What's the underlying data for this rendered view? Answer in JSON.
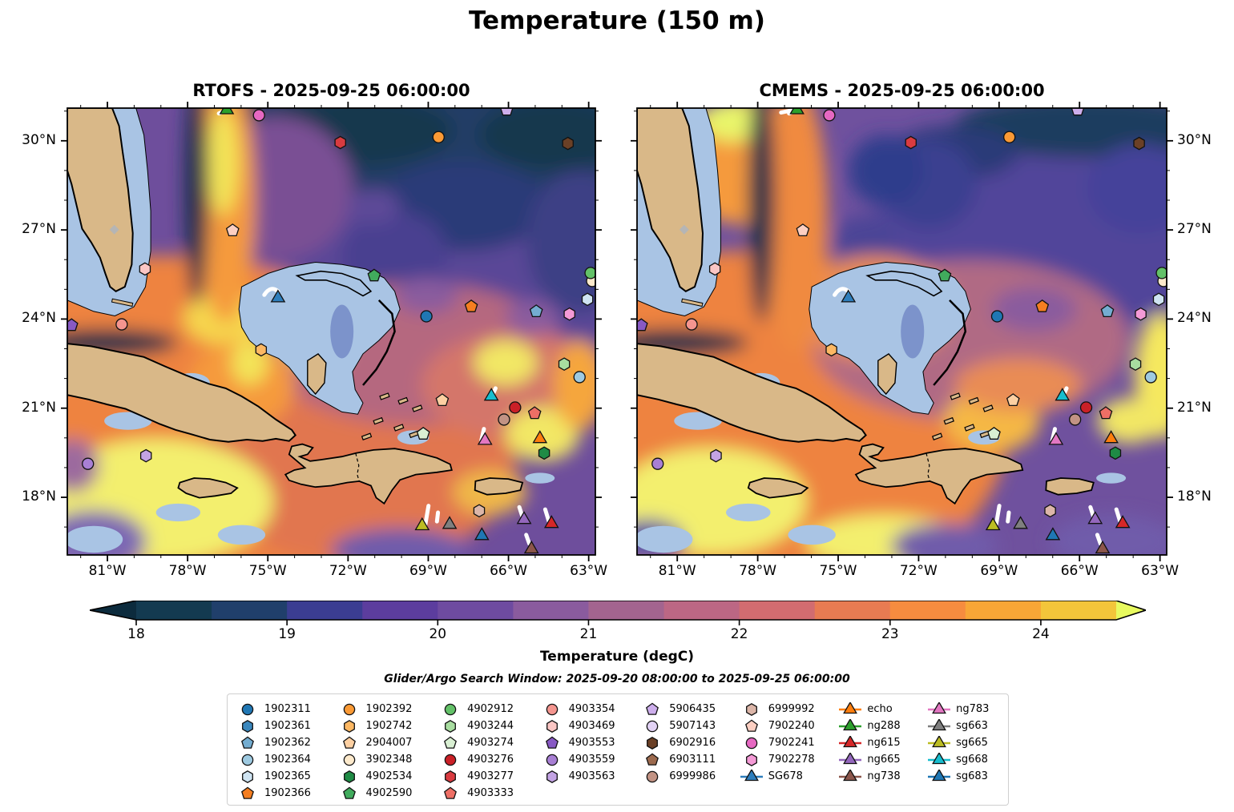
{
  "figure": {
    "title": "Temperature (150 m)",
    "colorbar_label": "Temperature (degC)",
    "subtitle": "Glider/Argo Search Window: 2025-09-20 08:00:00 to 2025-09-25 06:00:00"
  },
  "chart_data": {
    "type": "heatmap",
    "subtype": "filled-contour geographic map, 2 panels",
    "title": "Temperature (150 m)",
    "panels": [
      {
        "name": "RTOFS",
        "title": "RTOFS - 2025-09-25 06:00:00"
      },
      {
        "name": "CMEMS",
        "title": "CMEMS - 2025-09-25 06:00:00"
      }
    ],
    "lon_range_degW": [
      82.5,
      62.75
    ],
    "lat_range_degN": [
      16.06,
      31.1
    ],
    "lon_ticks": [
      {
        "v": 81,
        "label": "81°W"
      },
      {
        "v": 78,
        "label": "78°W"
      },
      {
        "v": 75,
        "label": "75°W"
      },
      {
        "v": 72,
        "label": "72°W"
      },
      {
        "v": 69,
        "label": "69°W"
      },
      {
        "v": 66,
        "label": "66°W"
      },
      {
        "v": 63,
        "label": "63°W"
      }
    ],
    "lat_ticks": [
      {
        "v": 30,
        "label": "30°N"
      },
      {
        "v": 27,
        "label": "27°N"
      },
      {
        "v": 24,
        "label": "24°N"
      },
      {
        "v": 21,
        "label": "21°N"
      },
      {
        "v": 18,
        "label": "18°N"
      }
    ],
    "colorbar": {
      "label": "Temperature (degC)",
      "tick_values": [
        18,
        19,
        20,
        21,
        22,
        23,
        24
      ],
      "range_degC": [
        18,
        24.5
      ],
      "level_step_degC": 0.5,
      "extend": "both",
      "under_color": "#0c2b3d",
      "over_color": "#e8fa5f",
      "level_colors": [
        "#133a50",
        "#203f6b",
        "#3b3d92",
        "#5c3d9e",
        "#6e4ba0",
        "#8a5b9e",
        "#a3648f",
        "#bc6784",
        "#d26c70",
        "#e87b52",
        "#f68c3f",
        "#f8a636",
        "#f3c53a"
      ]
    },
    "platforms": [
      {
        "id": "1902311",
        "kind": "argo",
        "marker": "circle",
        "color": "#2077b4",
        "col": 0,
        "fx": 0.68,
        "fy": 0.466
      },
      {
        "id": "1902361",
        "kind": "argo",
        "marker": "hexagon",
        "color": "#3a87bd",
        "col": 0,
        "fx": null,
        "fy": null
      },
      {
        "id": "1902362",
        "kind": "argo",
        "marker": "pentagon",
        "color": "#74add1",
        "col": 0,
        "fx": 0.888,
        "fy": 0.455
      },
      {
        "id": "1902364",
        "kind": "argo",
        "marker": "circle",
        "color": "#9ecae1",
        "col": 0,
        "fx": 0.97,
        "fy": 0.602
      },
      {
        "id": "1902365",
        "kind": "argo",
        "marker": "hexagon",
        "color": "#cfe4f2",
        "col": 0,
        "fx": 0.985,
        "fy": 0.428
      },
      {
        "id": "1902366",
        "kind": "argo",
        "marker": "pentagon",
        "color": "#f57e20",
        "col": 0,
        "fx": 0.765,
        "fy": 0.444
      },
      {
        "id": "1902392",
        "kind": "argo",
        "marker": "circle",
        "color": "#fb9a35",
        "col": 1,
        "fx": 0.703,
        "fy": 0.065
      },
      {
        "id": "1902742",
        "kind": "argo",
        "marker": "hexagon",
        "color": "#fdb863",
        "col": 1,
        "fx": 0.367,
        "fy": 0.541
      },
      {
        "id": "2904007",
        "kind": "argo",
        "marker": "pentagon",
        "color": "#fdd0a2",
        "col": 1,
        "fx": 0.71,
        "fy": 0.654
      },
      {
        "id": "3902348",
        "kind": "argo",
        "marker": "circle",
        "color": "#fdeacc",
        "col": 1,
        "fx": 0.994,
        "fy": 0.387
      },
      {
        "id": "4902534",
        "kind": "argo",
        "marker": "hexagon",
        "color": "#1f8b45",
        "col": 1,
        "fx": 0.903,
        "fy": 0.772
      },
      {
        "id": "4902590",
        "kind": "argo",
        "marker": "pentagon",
        "color": "#41ab5d",
        "col": 1,
        "fx": 0.581,
        "fy": 0.375
      },
      {
        "id": "4902912",
        "kind": "argo",
        "marker": "circle",
        "color": "#63c168",
        "col": 2,
        "fx": 0.991,
        "fy": 0.369
      },
      {
        "id": "4903244",
        "kind": "argo",
        "marker": "hexagon",
        "color": "#a8dda0",
        "col": 2,
        "fx": 0.941,
        "fy": 0.573
      },
      {
        "id": "4903274",
        "kind": "argo",
        "marker": "pentagon",
        "color": "#d9f0d3",
        "col": 2,
        "fx": 0.674,
        "fy": 0.729
      },
      {
        "id": "4903276",
        "kind": "argo",
        "marker": "circle",
        "color": "#ca2027",
        "col": 2,
        "fx": 0.848,
        "fy": 0.67
      },
      {
        "id": "4903277",
        "kind": "argo",
        "marker": "hexagon",
        "color": "#d93b40",
        "col": 2,
        "fx": 0.517,
        "fy": 0.077
      },
      {
        "id": "4903333",
        "kind": "argo",
        "marker": "pentagon",
        "color": "#ee6f65",
        "col": 2,
        "fx": 0.885,
        "fy": 0.683
      },
      {
        "id": "4903354",
        "kind": "argo",
        "marker": "circle",
        "color": "#f4958f",
        "col": 3,
        "fx": 0.103,
        "fy": 0.484
      },
      {
        "id": "4903469",
        "kind": "argo",
        "marker": "hexagon",
        "color": "#fbc6c4",
        "col": 3,
        "fx": 0.147,
        "fy": 0.36
      },
      {
        "id": "4903553",
        "kind": "argo",
        "marker": "pentagon",
        "color": "#8859c4",
        "col": 3,
        "fx": 0.008,
        "fy": 0.486
      },
      {
        "id": "4903559",
        "kind": "argo",
        "marker": "circle",
        "color": "#a87fd4",
        "col": 3,
        "fx": 0.039,
        "fy": 0.796
      },
      {
        "id": "4903563",
        "kind": "argo",
        "marker": "hexagon",
        "color": "#c3a3e4",
        "col": 3,
        "fx": 0.149,
        "fy": 0.778
      },
      {
        "id": "5906435",
        "kind": "argo",
        "marker": "pentagon",
        "color": "#cdaeec",
        "col": 4,
        "fx": 0.832,
        "fy": 0.004
      },
      {
        "id": "5907143",
        "kind": "argo",
        "marker": "circle",
        "color": "#e2d2f5",
        "col": 4,
        "fx": null,
        "fy": null
      },
      {
        "id": "6902916",
        "kind": "argo",
        "marker": "hexagon",
        "color": "#6b4026",
        "col": 4,
        "fx": 0.948,
        "fy": 0.079
      },
      {
        "id": "6903111",
        "kind": "argo",
        "marker": "pentagon",
        "color": "#9c6a4e",
        "col": 4,
        "fx": null,
        "fy": null
      },
      {
        "id": "6999986",
        "kind": "argo",
        "marker": "circle",
        "color": "#c29384",
        "col": 4,
        "fx": 0.827,
        "fy": 0.697
      },
      {
        "id": "6999992",
        "kind": "argo",
        "marker": "hexagon",
        "color": "#dcb6a9",
        "col": 5,
        "fx": 0.78,
        "fy": 0.901
      },
      {
        "id": "7902240",
        "kind": "argo",
        "marker": "pentagon",
        "color": "#fccfc2",
        "col": 5,
        "fx": 0.313,
        "fy": 0.274
      },
      {
        "id": "7902241",
        "kind": "argo",
        "marker": "circle",
        "color": "#e668c2",
        "col": 5,
        "fx": 0.363,
        "fy": 0.016
      },
      {
        "id": "7902278",
        "kind": "argo",
        "marker": "hexagon",
        "color": "#f49ad6",
        "col": 5,
        "fx": 0.951,
        "fy": 0.461
      },
      {
        "id": "SG678",
        "kind": "glider",
        "marker": "triangle",
        "color": "#2e7ebc",
        "col": 5,
        "fx": 0.399,
        "fy": 0.425
      },
      {
        "id": "echo",
        "kind": "glider",
        "marker": "triangle",
        "color": "#ff7f0e",
        "col": 6,
        "fx": 0.895,
        "fy": 0.74
      },
      {
        "id": "ng288",
        "kind": "glider",
        "marker": "triangle",
        "color": "#2ca02c",
        "col": 6,
        "fx": 0.302,
        "fy": 0.004
      },
      {
        "id": "ng615",
        "kind": "glider",
        "marker": "triangle",
        "color": "#d62728",
        "col": 6,
        "fx": 0.917,
        "fy": 0.93
      },
      {
        "id": "ng665",
        "kind": "glider",
        "marker": "triangle",
        "color": "#9467bd",
        "col": 6,
        "fx": 0.865,
        "fy": 0.921
      },
      {
        "id": "ng738",
        "kind": "glider",
        "marker": "triangle",
        "color": "#8c564b",
        "col": 6,
        "fx": 0.879,
        "fy": 0.987
      },
      {
        "id": "ng783",
        "kind": "glider",
        "marker": "triangle",
        "color": "#e377c2",
        "col": 7,
        "fx": 0.791,
        "fy": 0.744
      },
      {
        "id": "sg663",
        "kind": "glider",
        "marker": "triangle",
        "color": "#7f7f7f",
        "col": 7,
        "fx": 0.724,
        "fy": 0.932
      },
      {
        "id": "sg665",
        "kind": "glider",
        "marker": "triangle",
        "color": "#bcbd22",
        "col": 7,
        "fx": 0.672,
        "fy": 0.935
      },
      {
        "id": "sg668",
        "kind": "glider",
        "marker": "triangle",
        "color": "#17becf",
        "col": 7,
        "fx": 0.803,
        "fy": 0.645
      },
      {
        "id": "sg683",
        "kind": "glider",
        "marker": "triangle",
        "color": "#1f77b4",
        "col": 7,
        "fx": 0.785,
        "fy": 0.957
      }
    ],
    "extra_markers": [
      {
        "name": "gray-diamond",
        "marker": "diamond",
        "color": "#b5b5b5",
        "fx": 0.089,
        "fy": 0.272
      }
    ]
  }
}
